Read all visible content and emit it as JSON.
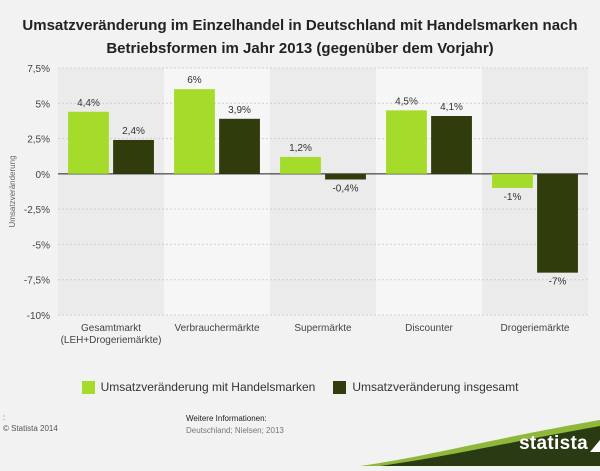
{
  "title": "Umsatzveränderung im Einzelhandel in Deutschland mit Handelsmarken nach Betriebsformen im Jahr 2013 (gegenüber dem Vorjahr)",
  "chart_data": {
    "type": "bar",
    "categories": [
      "Gesamtmarkt\n(LEH+Drogeriemärkte)",
      "Verbrauchermärkte",
      "Supermärkte",
      "Discounter",
      "Drogeriemärkte"
    ],
    "series": [
      {
        "name": "Umsatzveränderung mit Handelsmarken",
        "values": [
          4.4,
          6,
          1.2,
          4.5,
          -1
        ],
        "labels": [
          "4,4%",
          "6%",
          "1,2%",
          "4,5%",
          "-1%"
        ],
        "color": "#a5dc2c"
      },
      {
        "name": "Umsatzveränderung insgesamt",
        "values": [
          2.4,
          3.9,
          -0.4,
          4.1,
          -7
        ],
        "labels": [
          "2,4%",
          "3,9%",
          "-0,4%",
          "4,1%",
          "-7%"
        ],
        "color": "#313c0d"
      }
    ],
    "ylabel": "Umsatzveränderung",
    "ylim": [
      -10,
      7.5
    ],
    "yticks": [
      7.5,
      5,
      2.5,
      0,
      -2.5,
      -5,
      -7.5,
      -10
    ],
    "ytick_labels": [
      "7,5%",
      "5%",
      "2,5%",
      "0%",
      "-2,5%",
      "-5%",
      "-7,5%",
      "-10%"
    ],
    "grid": true,
    "legend": "bottom"
  },
  "footer": {
    "source_prefix": ":",
    "copyright": "© Statista 2014",
    "info_title": "Weitere Informationen:",
    "info_text": "Deutschland; Nielsen; 2013",
    "brand": "statista"
  },
  "colors": {
    "accent": "#a5dc2c",
    "dark": "#313c0d",
    "brand": "#2a3a12"
  }
}
